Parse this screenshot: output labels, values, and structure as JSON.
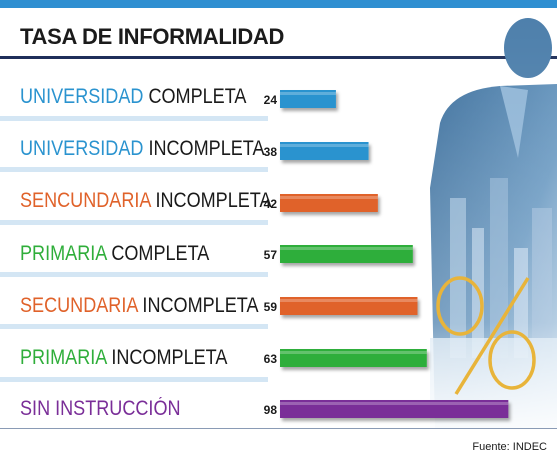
{
  "chart_data": {
    "type": "bar",
    "orientation": "horizontal",
    "title": "TASA DE INFORMALIDAD",
    "categories": [
      {
        "highlight": "UNIVERSIDAD",
        "rest": " COMPLETA",
        "color": "#2a93cf"
      },
      {
        "highlight": "UNIVERSIDAD",
        "rest": " INCOMPLETA",
        "color": "#2a93cf"
      },
      {
        "highlight": "SENCUNDARIA",
        "rest": " INCOMPLETA",
        "color": "#e0622a"
      },
      {
        "highlight": "PRIMARIA",
        "rest": " COMPLETA",
        "color": "#2fae3a"
      },
      {
        "highlight": "SECUNDARIA",
        "rest": " INCOMPLETA",
        "color": "#e0622a"
      },
      {
        "highlight": "PRIMARIA",
        "rest": " INCOMPLETA",
        "color": "#2fae3a"
      },
      {
        "highlight": "SIN INSTRUCCIÓN",
        "rest": "",
        "color": "#7a2e98"
      }
    ],
    "values": [
      "24",
      "38",
      "42",
      "57",
      "59",
      "63",
      "98"
    ],
    "bar_colors": [
      "#2a93cf",
      "#2a93cf",
      "#e0622a",
      "#2fae3a",
      "#e0622a",
      "#2fae3a",
      "#7a2e98"
    ],
    "xlim": [
      0,
      100
    ],
    "grid": false,
    "legend": "none"
  },
  "footer": {
    "source": "Fuente: INDEC"
  },
  "colors": {
    "accent_blue": "#2f8fd1",
    "header_rule": "#1f2f5a",
    "percent_sign": "#e8b43a"
  }
}
